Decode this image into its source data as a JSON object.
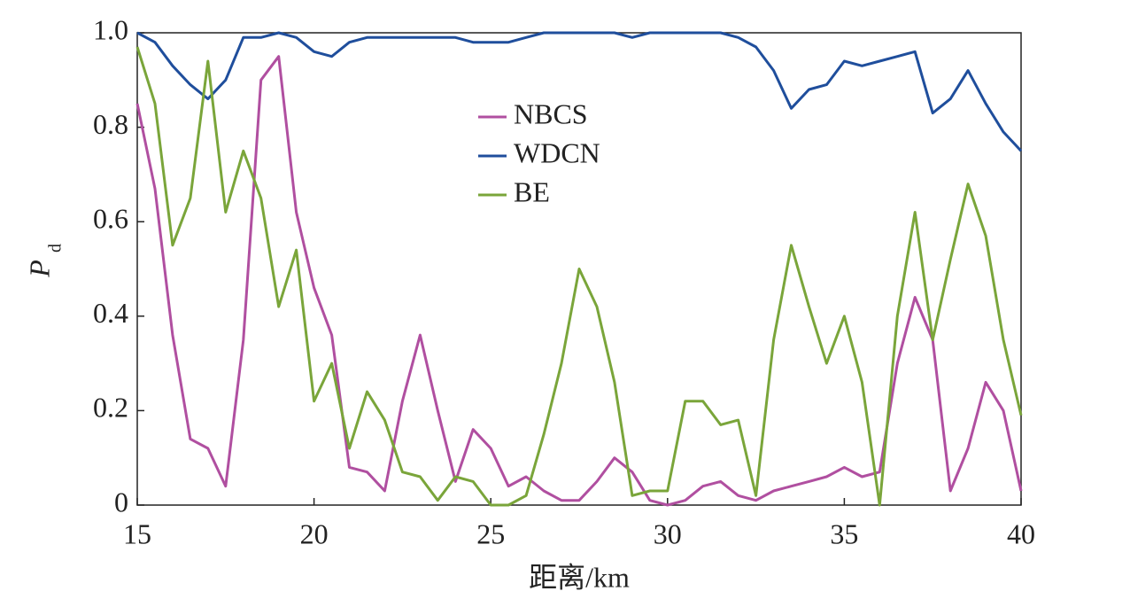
{
  "chart_data": {
    "type": "line",
    "x_label": "距离/km",
    "y_label": "P",
    "y_label_sub": "d",
    "x": [
      15,
      15.5,
      16,
      16.5,
      17,
      17.5,
      18,
      18.5,
      19,
      19.5,
      20,
      20.5,
      21,
      21.5,
      22,
      22.5,
      23,
      23.5,
      24,
      24.5,
      25,
      25.5,
      26,
      26.5,
      27,
      27.5,
      28,
      28.5,
      29,
      29.5,
      30,
      30.5,
      31,
      31.5,
      32,
      32.5,
      33,
      33.5,
      34,
      34.5,
      35,
      35.5,
      36,
      36.5,
      37,
      37.5,
      38,
      38.5,
      39,
      39.5,
      40
    ],
    "series": [
      {
        "name": "NBCS",
        "color": "#b04fa0",
        "values": [
          0.85,
          0.67,
          0.36,
          0.14,
          0.12,
          0.04,
          0.35,
          0.9,
          0.95,
          0.62,
          0.46,
          0.36,
          0.08,
          0.07,
          0.03,
          0.22,
          0.36,
          0.2,
          0.05,
          0.16,
          0.12,
          0.04,
          0.06,
          0.03,
          0.01,
          0.01,
          0.05,
          0.1,
          0.07,
          0.01,
          0.0,
          0.01,
          0.04,
          0.05,
          0.02,
          0.01,
          0.03,
          0.04,
          0.05,
          0.06,
          0.08,
          0.06,
          0.07,
          0.3,
          0.44,
          0.35,
          0.03,
          0.12,
          0.26,
          0.2,
          0.03
        ]
      },
      {
        "name": "WDCN",
        "color": "#1f4e9c",
        "values": [
          1.0,
          0.98,
          0.93,
          0.89,
          0.86,
          0.9,
          0.99,
          0.99,
          1.0,
          0.99,
          0.96,
          0.95,
          0.98,
          0.99,
          0.99,
          0.99,
          0.99,
          0.99,
          0.99,
          0.98,
          0.98,
          0.98,
          0.99,
          1.0,
          1.0,
          1.0,
          1.0,
          1.0,
          0.99,
          1.0,
          1.0,
          1.0,
          1.0,
          1.0,
          0.99,
          0.97,
          0.92,
          0.84,
          0.88,
          0.89,
          0.94,
          0.93,
          0.94,
          0.95,
          0.96,
          0.83,
          0.86,
          0.92,
          0.85,
          0.79,
          0.75
        ]
      },
      {
        "name": "BE",
        "color": "#7aa53a",
        "values": [
          0.97,
          0.85,
          0.55,
          0.65,
          0.94,
          0.62,
          0.75,
          0.65,
          0.42,
          0.54,
          0.22,
          0.3,
          0.12,
          0.24,
          0.18,
          0.07,
          0.06,
          0.01,
          0.06,
          0.05,
          0.0,
          0.0,
          0.02,
          0.15,
          0.3,
          0.5,
          0.42,
          0.26,
          0.02,
          0.03,
          0.03,
          0.22,
          0.22,
          0.17,
          0.18,
          0.02,
          0.35,
          0.55,
          0.42,
          0.3,
          0.4,
          0.26,
          0.0,
          0.4,
          0.62,
          0.35,
          0.52,
          0.68,
          0.57,
          0.35,
          0.19
        ]
      }
    ],
    "xlim": [
      15,
      40
    ],
    "xticks": [
      15,
      20,
      25,
      30,
      35,
      40
    ],
    "ylim": [
      0,
      1
    ],
    "yticks": [
      0,
      0.2,
      0.4,
      0.6,
      0.8,
      {
        "value": 1,
        "label": "1.0"
      }
    ]
  }
}
